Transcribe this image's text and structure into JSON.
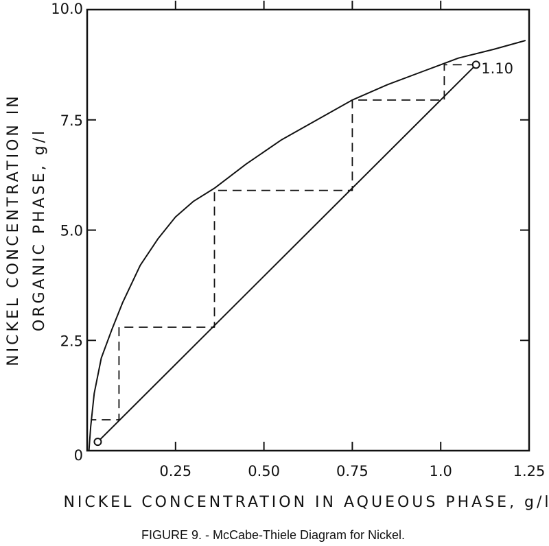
{
  "chart_data": {
    "type": "line",
    "xlabel": "NICKEL CONCENTRATION IN AQUEOUS PHASE, g/l",
    "ylabel_lines": [
      "NICKEL CONCENTRATION IN",
      "ORGANIC PHASE, g/l"
    ],
    "xlim": [
      0,
      1.25
    ],
    "ylim": [
      0,
      10.0
    ],
    "x_ticks": [
      0.25,
      0.5,
      0.75,
      1.0,
      1.25
    ],
    "x_tick_labels": [
      "0.25",
      "0.50",
      "0.75",
      "1.0",
      "1.25"
    ],
    "y_ticks": [
      0,
      2.5,
      5.0,
      7.5,
      10.0
    ],
    "y_tick_labels": [
      "0",
      "2.5",
      "5.0",
      "7.5",
      "10.0"
    ],
    "grid": false,
    "series": [
      {
        "kind": "equilibrium-curve",
        "x": [
          0.005,
          0.01,
          0.02,
          0.04,
          0.07,
          0.1,
          0.15,
          0.2,
          0.25,
          0.3,
          0.36,
          0.45,
          0.55,
          0.65,
          0.75,
          0.85,
          0.95,
          1.05,
          1.15,
          1.24
        ],
        "y": [
          0.0,
          0.55,
          1.3,
          2.1,
          2.75,
          3.35,
          4.2,
          4.8,
          5.3,
          5.65,
          5.95,
          6.5,
          7.05,
          7.5,
          7.95,
          8.3,
          8.6,
          8.9,
          9.1,
          9.3
        ]
      },
      {
        "kind": "operating-line",
        "x": [
          0.03,
          1.1
        ],
        "y": [
          0.2,
          8.75
        ]
      },
      {
        "kind": "stage-steps",
        "x": [
          1.1,
          1.01,
          1.01,
          0.75,
          0.75,
          0.36,
          0.36,
          0.09,
          0.09,
          0.01
        ],
        "y": [
          8.75,
          8.75,
          7.95,
          7.95,
          5.9,
          5.9,
          2.8,
          2.8,
          0.7,
          0.7
        ]
      }
    ],
    "markers": [
      {
        "x": 0.03,
        "y": 0.2
      },
      {
        "x": 1.1,
        "y": 8.75
      }
    ],
    "annotations": [
      {
        "text": "1.10",
        "x": 1.16,
        "y": 8.55
      }
    ],
    "caption": "FIGURE 9. - McCabe-Thiele Diagram for Nickel."
  }
}
